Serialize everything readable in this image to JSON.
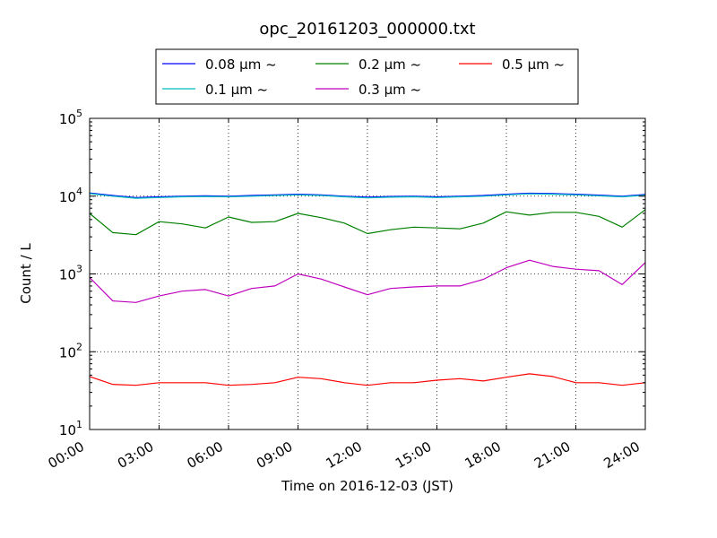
{
  "chart_data": {
    "type": "line",
    "title": "opc_20161203_000000.txt",
    "xlabel": "Time on 2016-12-03 (JST)",
    "ylabel": "Count / L",
    "xlim": [
      "00:00",
      "24:00"
    ],
    "ylim": [
      10,
      100000
    ],
    "yscale": "log",
    "grid": true,
    "legend": {
      "placement": "top-center",
      "columns": 3
    },
    "x_ticks": [
      "00:00",
      "03:00",
      "06:00",
      "09:00",
      "12:00",
      "15:00",
      "18:00",
      "21:00",
      "24:00"
    ],
    "y_ticks": [
      {
        "base": "10",
        "exp": "1"
      },
      {
        "base": "10",
        "exp": "2"
      },
      {
        "base": "10",
        "exp": "3"
      },
      {
        "base": "10",
        "exp": "4"
      },
      {
        "base": "10",
        "exp": "5"
      }
    ],
    "x": [
      "00:00",
      "01:00",
      "02:00",
      "03:00",
      "04:00",
      "05:00",
      "06:00",
      "07:00",
      "08:00",
      "09:00",
      "10:00",
      "11:00",
      "12:00",
      "13:00",
      "14:00",
      "15:00",
      "16:00",
      "17:00",
      "18:00",
      "19:00",
      "20:00",
      "21:00",
      "22:00",
      "23:00",
      "24:00"
    ],
    "series": [
      {
        "name": "0.08 μm ~",
        "color": "#0000ff",
        "values": [
          11000,
          10200,
          9600,
          9800,
          10000,
          10100,
          10000,
          10200,
          10400,
          10600,
          10400,
          10000,
          9700,
          9900,
          10000,
          9800,
          10000,
          10200,
          10600,
          10900,
          10800,
          10600,
          10300,
          10000,
          10500
        ]
      },
      {
        "name": "0.1 μm ~",
        "color": "#00bfbf",
        "values": [
          10800,
          10000,
          9400,
          9600,
          9800,
          9900,
          9800,
          10000,
          10200,
          10400,
          10200,
          9800,
          9500,
          9700,
          9800,
          9600,
          9800,
          10000,
          10400,
          10700,
          10600,
          10400,
          10100,
          9800,
          10300
        ]
      },
      {
        "name": "0.2 μm ~",
        "color": "#008000",
        "values": [
          6000,
          3400,
          3200,
          4700,
          4400,
          3900,
          5400,
          4600,
          4700,
          6000,
          5300,
          4500,
          3300,
          3700,
          4000,
          3900,
          3800,
          4500,
          6300,
          5700,
          6200,
          6200,
          5500,
          4000,
          6700
        ]
      },
      {
        "name": "0.3 μm ~",
        "color": "#bf00bf",
        "values": [
          900,
          450,
          430,
          520,
          600,
          630,
          520,
          650,
          700,
          1000,
          860,
          680,
          540,
          650,
          680,
          700,
          700,
          850,
          1200,
          1500,
          1250,
          1150,
          1100,
          730,
          1400
        ]
      },
      {
        "name": "0.5 μm ~",
        "color": "#ff0000",
        "values": [
          48,
          38,
          37,
          40,
          40,
          40,
          37,
          38,
          40,
          47,
          45,
          40,
          37,
          40,
          40,
          43,
          45,
          42,
          47,
          52,
          48,
          40,
          40,
          37,
          40
        ]
      }
    ]
  }
}
